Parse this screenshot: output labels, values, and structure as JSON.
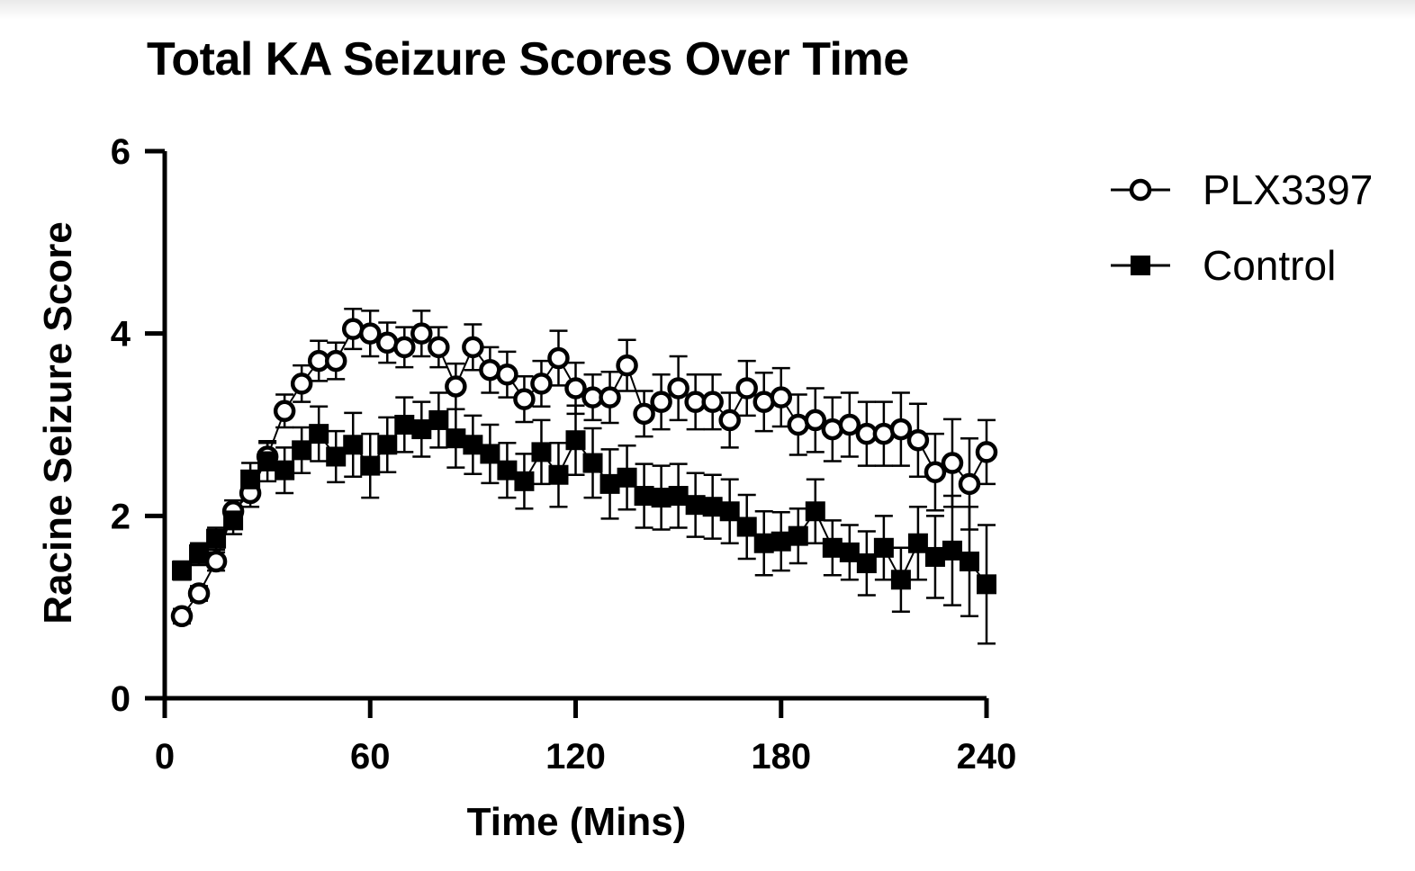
{
  "chart_data": {
    "type": "line",
    "title": "Total KA Seizure Scores Over Time",
    "xlabel": "Time (Mins)",
    "ylabel": "Racine Seizure Score",
    "xlim": [
      0,
      240
    ],
    "ylim": [
      0,
      6
    ],
    "xticks": [
      0,
      60,
      120,
      180,
      240
    ],
    "yticks": [
      0,
      2,
      4,
      6
    ],
    "grid": false,
    "legend_position": "top-right",
    "error_bars": "mean ± SEM",
    "series": [
      {
        "name": "PLX3397",
        "marker": "open-circle",
        "color": "#000000",
        "x": [
          5,
          10,
          15,
          20,
          25,
          30,
          35,
          40,
          45,
          50,
          55,
          60,
          65,
          70,
          75,
          80,
          85,
          90,
          95,
          100,
          105,
          110,
          115,
          120,
          125,
          130,
          135,
          140,
          145,
          150,
          155,
          160,
          165,
          170,
          175,
          180,
          185,
          190,
          195,
          200,
          205,
          210,
          215,
          220,
          225,
          230,
          235,
          240
        ],
        "y": [
          0.9,
          1.15,
          1.5,
          2.05,
          2.25,
          2.65,
          3.15,
          3.45,
          3.7,
          3.7,
          4.05,
          4.0,
          3.9,
          3.85,
          4.0,
          3.85,
          3.42,
          3.85,
          3.6,
          3.55,
          3.28,
          3.45,
          3.73,
          3.4,
          3.3,
          3.3,
          3.65,
          3.12,
          3.25,
          3.4,
          3.25,
          3.25,
          3.05,
          3.4,
          3.25,
          3.3,
          3.0,
          3.05,
          2.95,
          3.0,
          2.9,
          2.9,
          2.95,
          2.83,
          2.48,
          2.58,
          2.35,
          2.7
        ],
        "err": [
          0.08,
          0.08,
          0.1,
          0.12,
          0.15,
          0.15,
          0.18,
          0.2,
          0.22,
          0.2,
          0.22,
          0.25,
          0.22,
          0.22,
          0.25,
          0.22,
          0.25,
          0.25,
          0.25,
          0.25,
          0.25,
          0.25,
          0.3,
          0.28,
          0.25,
          0.28,
          0.28,
          0.25,
          0.3,
          0.35,
          0.3,
          0.3,
          0.3,
          0.3,
          0.32,
          0.32,
          0.33,
          0.35,
          0.35,
          0.35,
          0.35,
          0.35,
          0.4,
          0.4,
          0.42,
          0.48,
          0.5,
          0.35
        ]
      },
      {
        "name": "Control",
        "marker": "filled-square",
        "color": "#000000",
        "x": [
          5,
          10,
          15,
          20,
          25,
          30,
          35,
          40,
          45,
          50,
          55,
          60,
          65,
          70,
          75,
          80,
          85,
          90,
          95,
          100,
          105,
          110,
          115,
          120,
          125,
          130,
          135,
          140,
          145,
          150,
          155,
          160,
          165,
          170,
          175,
          180,
          185,
          190,
          195,
          200,
          205,
          210,
          215,
          220,
          225,
          230,
          235,
          240
        ],
        "y": [
          1.4,
          1.58,
          1.75,
          1.95,
          2.4,
          2.6,
          2.5,
          2.72,
          2.9,
          2.65,
          2.78,
          2.55,
          2.78,
          3.0,
          2.95,
          3.05,
          2.85,
          2.78,
          2.68,
          2.5,
          2.38,
          2.7,
          2.45,
          2.83,
          2.58,
          2.35,
          2.42,
          2.22,
          2.2,
          2.22,
          2.12,
          2.1,
          2.05,
          1.88,
          1.7,
          1.72,
          1.78,
          2.05,
          1.65,
          1.6,
          1.48,
          1.65,
          1.3,
          1.7,
          1.55,
          1.62,
          1.5,
          1.25
        ],
        "err": [
          0.1,
          0.12,
          0.12,
          0.15,
          0.18,
          0.22,
          0.25,
          0.25,
          0.3,
          0.28,
          0.35,
          0.35,
          0.3,
          0.3,
          0.3,
          0.3,
          0.32,
          0.32,
          0.32,
          0.3,
          0.3,
          0.35,
          0.35,
          0.38,
          0.38,
          0.38,
          0.35,
          0.35,
          0.35,
          0.35,
          0.35,
          0.35,
          0.35,
          0.35,
          0.35,
          0.32,
          0.3,
          0.35,
          0.3,
          0.3,
          0.35,
          0.35,
          0.35,
          0.4,
          0.45,
          0.6,
          0.6,
          0.65
        ]
      }
    ]
  }
}
